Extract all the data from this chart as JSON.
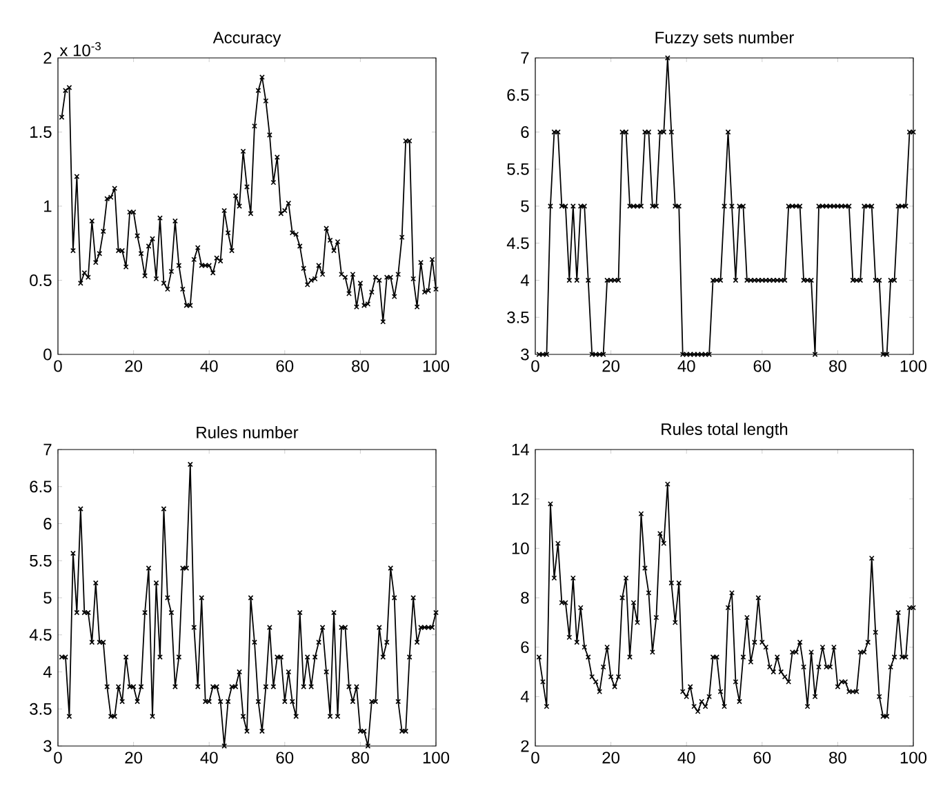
{
  "chart_data": [
    {
      "type": "line",
      "title": "Accuracy",
      "annotations": [
        "x 10$^{-3}$"
      ],
      "color": "#000000",
      "marker": "cross",
      "xlim": [
        0,
        100
      ],
      "xticks": [
        0,
        20,
        40,
        60,
        80,
        100
      ],
      "ylim": [
        0,
        2
      ],
      "yticks": [
        0,
        0.5,
        1,
        1.5,
        2
      ],
      "x": [
        1,
        2,
        3,
        4,
        5,
        6,
        7,
        8,
        9,
        10,
        11,
        12,
        13,
        14,
        15,
        16,
        17,
        18,
        19,
        20,
        21,
        22,
        23,
        24,
        25,
        26,
        27,
        28,
        29,
        30,
        31,
        32,
        33,
        34,
        35,
        36,
        37,
        38,
        39,
        40,
        41,
        42,
        43,
        44,
        45,
        46,
        47,
        48,
        49,
        50,
        51,
        52,
        53,
        54,
        55,
        56,
        57,
        58,
        59,
        60,
        61,
        62,
        63,
        64,
        65,
        66,
        67,
        68,
        69,
        70,
        71,
        72,
        73,
        74,
        75,
        76,
        77,
        78,
        79,
        80,
        81,
        82,
        83,
        84,
        85,
        86,
        87,
        88,
        89,
        90,
        91,
        92,
        93,
        94,
        95,
        96,
        97,
        98,
        99,
        100
      ],
      "values": [
        1.6,
        1.78,
        1.8,
        0.7,
        1.2,
        0.48,
        0.55,
        0.52,
        0.9,
        0.62,
        0.68,
        0.83,
        1.05,
        1.06,
        1.12,
        0.7,
        0.7,
        0.59,
        0.96,
        0.96,
        0.8,
        0.68,
        0.53,
        0.73,
        0.78,
        0.51,
        0.92,
        0.48,
        0.44,
        0.56,
        0.9,
        0.6,
        0.44,
        0.33,
        0.33,
        0.64,
        0.72,
        0.6,
        0.6,
        0.6,
        0.55,
        0.65,
        0.63,
        0.97,
        0.82,
        0.7,
        1.07,
        1.0,
        1.37,
        1.13,
        0.95,
        1.54,
        1.78,
        1.87,
        1.71,
        1.48,
        1.16,
        1.33,
        0.95,
        0.97,
        1.02,
        0.82,
        0.81,
        0.73,
        0.58,
        0.47,
        0.5,
        0.51,
        0.6,
        0.54,
        0.85,
        0.77,
        0.7,
        0.76,
        0.54,
        0.52,
        0.41,
        0.54,
        0.32,
        0.48,
        0.33,
        0.34,
        0.42,
        0.52,
        0.5,
        0.22,
        0.52,
        0.52,
        0.39,
        0.54,
        0.79,
        1.44,
        1.44,
        0.51,
        0.32,
        0.62,
        0.42,
        0.43,
        0.64,
        0.44
      ]
    },
    {
      "type": "line",
      "title": "Fuzzy sets number",
      "color": "#000000",
      "marker": "cross",
      "xlim": [
        0,
        100
      ],
      "xticks": [
        0,
        20,
        40,
        60,
        80,
        100
      ],
      "ylim": [
        3,
        7
      ],
      "yticks": [
        3,
        3.5,
        4,
        4.5,
        5,
        5.5,
        6,
        6.5,
        7
      ],
      "x": [
        1,
        2,
        3,
        4,
        5,
        6,
        7,
        8,
        9,
        10,
        11,
        12,
        13,
        14,
        15,
        16,
        17,
        18,
        19,
        20,
        21,
        22,
        23,
        24,
        25,
        26,
        27,
        28,
        29,
        30,
        31,
        32,
        33,
        34,
        35,
        36,
        37,
        38,
        39,
        40,
        41,
        42,
        43,
        44,
        45,
        46,
        47,
        48,
        49,
        50,
        51,
        52,
        53,
        54,
        55,
        56,
        57,
        58,
        59,
        60,
        61,
        62,
        63,
        64,
        65,
        66,
        67,
        68,
        69,
        70,
        71,
        72,
        73,
        74,
        75,
        76,
        77,
        78,
        79,
        80,
        81,
        82,
        83,
        84,
        85,
        86,
        87,
        88,
        89,
        90,
        91,
        92,
        93,
        94,
        95,
        96,
        97,
        98,
        99,
        100
      ],
      "values": [
        3,
        3,
        3,
        5,
        6,
        6,
        5,
        5,
        4,
        5,
        4,
        5,
        5,
        4,
        3,
        3,
        3,
        3,
        4,
        4,
        4,
        4,
        6,
        6,
        5,
        5,
        5,
        5,
        6,
        6,
        5,
        5,
        6,
        6,
        7,
        6,
        5,
        5,
        3,
        3,
        3,
        3,
        3,
        3,
        3,
        3,
        4,
        4,
        4,
        5,
        6,
        5,
        4,
        5,
        5,
        4,
        4,
        4,
        4,
        4,
        4,
        4,
        4,
        4,
        4,
        4,
        5,
        5,
        5,
        5,
        4,
        4,
        4,
        3,
        5,
        5,
        5,
        5,
        5,
        5,
        5,
        5,
        5,
        4,
        4,
        4,
        5,
        5,
        5,
        4,
        4,
        3,
        3,
        4,
        4,
        5,
        5,
        5,
        6,
        6
      ]
    },
    {
      "type": "line",
      "title": "Rules number",
      "color": "#000000",
      "marker": "cross",
      "xlim": [
        0,
        100
      ],
      "xticks": [
        0,
        20,
        40,
        60,
        80,
        100
      ],
      "ylim": [
        3,
        7
      ],
      "yticks": [
        3,
        3.5,
        4,
        4.5,
        5,
        5.5,
        6,
        6.5,
        7
      ],
      "x": [
        1,
        2,
        3,
        4,
        5,
        6,
        7,
        8,
        9,
        10,
        11,
        12,
        13,
        14,
        15,
        16,
        17,
        18,
        19,
        20,
        21,
        22,
        23,
        24,
        25,
        26,
        27,
        28,
        29,
        30,
        31,
        32,
        33,
        34,
        35,
        36,
        37,
        38,
        39,
        40,
        41,
        42,
        43,
        44,
        45,
        46,
        47,
        48,
        49,
        50,
        51,
        52,
        53,
        54,
        55,
        56,
        57,
        58,
        59,
        60,
        61,
        62,
        63,
        64,
        65,
        66,
        67,
        68,
        69,
        70,
        71,
        72,
        73,
        74,
        75,
        76,
        77,
        78,
        79,
        80,
        81,
        82,
        83,
        84,
        85,
        86,
        87,
        88,
        89,
        90,
        91,
        92,
        93,
        94,
        95,
        96,
        97,
        98,
        99,
        100
      ],
      "values": [
        4.2,
        4.2,
        3.4,
        5.6,
        4.8,
        6.2,
        4.8,
        4.8,
        4.4,
        5.2,
        4.4,
        4.4,
        3.8,
        3.4,
        3.4,
        3.8,
        3.6,
        4.2,
        3.8,
        3.8,
        3.6,
        3.8,
        4.8,
        5.4,
        3.4,
        5.2,
        4.2,
        6.2,
        5.0,
        4.8,
        3.8,
        4.2,
        5.4,
        5.4,
        6.8,
        4.6,
        3.8,
        5.0,
        3.6,
        3.6,
        3.8,
        3.8,
        3.6,
        3.0,
        3.6,
        3.8,
        3.8,
        4.0,
        3.4,
        3.2,
        5.0,
        4.4,
        3.6,
        3.2,
        3.8,
        4.6,
        3.8,
        4.2,
        4.2,
        3.6,
        4.0,
        3.6,
        3.4,
        4.8,
        3.8,
        4.2,
        3.8,
        4.2,
        4.4,
        4.6,
        4.0,
        3.4,
        4.8,
        3.4,
        4.6,
        4.6,
        3.8,
        3.6,
        3.8,
        3.2,
        3.2,
        3.0,
        3.6,
        3.6,
        4.6,
        4.2,
        4.4,
        5.4,
        5.0,
        3.6,
        3.2,
        3.2,
        4.2,
        5.0,
        4.4,
        4.6,
        4.6,
        4.6,
        4.6,
        4.8
      ]
    },
    {
      "type": "line",
      "title": "Rules total length",
      "color": "#000000",
      "marker": "cross",
      "xlim": [
        0,
        100
      ],
      "xticks": [
        0,
        20,
        40,
        60,
        80,
        100
      ],
      "ylim": [
        2,
        14
      ],
      "yticks": [
        2,
        4,
        6,
        8,
        10,
        12,
        14
      ],
      "x": [
        1,
        2,
        3,
        4,
        5,
        6,
        7,
        8,
        9,
        10,
        11,
        12,
        13,
        14,
        15,
        16,
        17,
        18,
        19,
        20,
        21,
        22,
        23,
        24,
        25,
        26,
        27,
        28,
        29,
        30,
        31,
        32,
        33,
        34,
        35,
        36,
        37,
        38,
        39,
        40,
        41,
        42,
        43,
        44,
        45,
        46,
        47,
        48,
        49,
        50,
        51,
        52,
        53,
        54,
        55,
        56,
        57,
        58,
        59,
        60,
        61,
        62,
        63,
        64,
        65,
        66,
        67,
        68,
        69,
        70,
        71,
        72,
        73,
        74,
        75,
        76,
        77,
        78,
        79,
        80,
        81,
        82,
        83,
        84,
        85,
        86,
        87,
        88,
        89,
        90,
        91,
        92,
        93,
        94,
        95,
        96,
        97,
        98,
        99,
        100
      ],
      "values": [
        5.6,
        4.6,
        3.6,
        11.8,
        8.8,
        10.2,
        7.8,
        7.8,
        6.4,
        8.8,
        6.2,
        7.6,
        6.0,
        5.6,
        4.8,
        4.6,
        4.2,
        5.2,
        6.0,
        4.8,
        4.4,
        4.8,
        8.0,
        8.8,
        5.6,
        7.8,
        7.0,
        11.4,
        9.2,
        8.2,
        5.8,
        7.2,
        10.6,
        10.2,
        12.6,
        8.6,
        7.0,
        8.6,
        4.2,
        4.0,
        4.4,
        3.6,
        3.4,
        3.8,
        3.6,
        4.0,
        5.6,
        5.6,
        4.2,
        3.6,
        7.6,
        8.2,
        4.6,
        3.8,
        5.6,
        7.2,
        5.4,
        6.2,
        8.0,
        6.2,
        6.0,
        5.2,
        5.0,
        5.6,
        5.0,
        4.8,
        4.6,
        5.8,
        5.8,
        6.2,
        5.2,
        3.6,
        5.8,
        4.0,
        5.2,
        6.0,
        5.2,
        5.2,
        6.0,
        4.4,
        4.6,
        4.6,
        4.2,
        4.2,
        4.2,
        5.8,
        5.8,
        6.2,
        9.6,
        6.6,
        4.0,
        3.2,
        3.2,
        5.2,
        5.6,
        7.4,
        5.6,
        5.6,
        7.6,
        7.6
      ]
    }
  ]
}
